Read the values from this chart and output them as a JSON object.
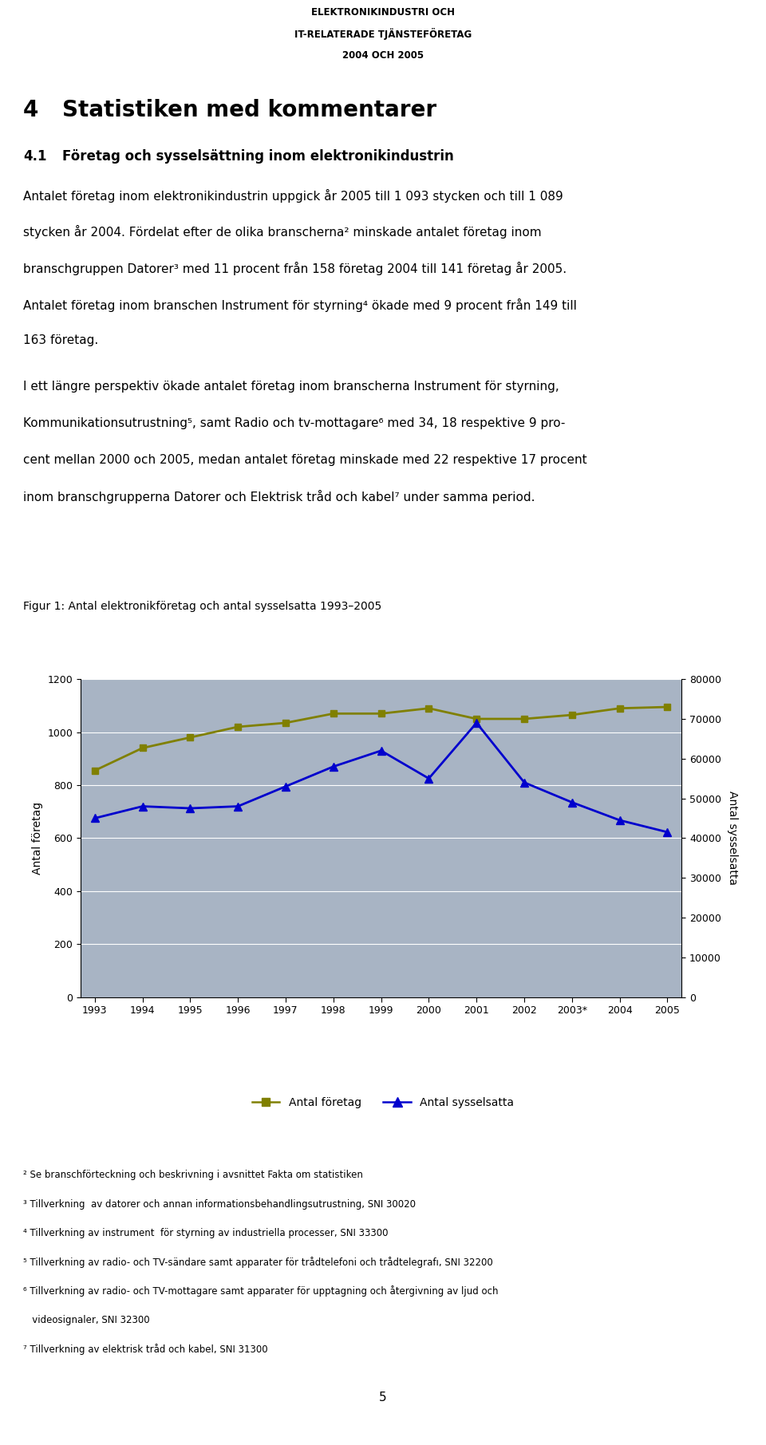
{
  "header_line1": "ELEKTRONIKINDUSTRI OCH",
  "header_line2": "IT-RELATERADE TJÄNSTEFÖRETAG",
  "header_line3": "2004 OCH 2005",
  "section_number": "4",
  "section_title": "Statistiken med kommentarer",
  "subsection_num": "4.1",
  "subsection_title": "Företag och sysselsättning inom elektronikindustrin",
  "fig_caption": "Figur 1: Antal elektronikföretag och antal sysselsatta 1993–2005",
  "years": [
    "1993",
    "1994",
    "1995",
    "1996",
    "1997",
    "1998",
    "1999",
    "2000",
    "2001",
    "2002",
    "2003*",
    "2004",
    "2005"
  ],
  "antal_foretag": [
    855,
    940,
    980,
    1020,
    1035,
    1070,
    1070,
    1090,
    1050,
    1050,
    1065,
    1090,
    1095
  ],
  "antal_sysselsatta": [
    45000,
    48000,
    47500,
    48000,
    53000,
    58000,
    62000,
    55000,
    69000,
    54000,
    49000,
    44500,
    41500
  ],
  "foretag_color": "#808000",
  "sysselsatta_color": "#0000CD",
  "chart_bg_color": "#A8B4C4",
  "left_ylim": [
    0,
    1200
  ],
  "right_ylim": [
    0,
    80000
  ],
  "left_yticks": [
    0,
    200,
    400,
    600,
    800,
    1000,
    1200
  ],
  "right_yticks": [
    0,
    10000,
    20000,
    30000,
    40000,
    50000,
    60000,
    70000,
    80000
  ],
  "ylabel_left": "Antal företag",
  "ylabel_right": "Antal sysselsatta",
  "legend_foretag": "Antal företag",
  "legend_sysselsatta": "Antal sysselsatta",
  "para1_lines": [
    "Antalet företag inom elektronikindustrin uppgick år 2005 till 1 093 stycken och till 1 089",
    "stycken år 2004. Fördelat efter de olika branscherna² minskade antalet företag inom",
    "branschgruppen Datorer³ med 11 procent från 158 företag 2004 till 141 företag år 2005.",
    "Antalet företag inom branschen Instrument för styrning⁴ ökade med 9 procent från 149 till",
    "163 företag."
  ],
  "para2_lines": [
    "I ett längre perspektiv ökade antalet företag inom branscherna Instrument för styrning,",
    "Kommunikationsutrustning⁵, samt Radio och tv-mottagare⁶ med 34, 18 respektive 9 pro-",
    "cent mellan 2000 och 2005, medan antalet företag minskade med 22 respektive 17 procent",
    "inom branschgrupperna Datorer och Elektrisk tråd och kabel⁷ under samma period."
  ],
  "footnotes": [
    "² Se branschförteckning och beskrivning i avsnittet Fakta om statistiken",
    "³ Tillverkning  av datorer och annan informationsbehandlingsutrustning, SNI 30020",
    "⁴ Tillverkning av instrument  för styrning av industriella processer, SNI 33300",
    "⁵ Tillverkning av radio- och TV-sändare samt apparater för trådtelefoni och trådtelegrafı, SNI 32200",
    "⁶ Tillverkning av radio- och TV-mottagare samt apparater för upptagning och återgivning av ljud och",
    "   videosignaler, SNI 32300",
    "⁷ Tillverkning av elektrisk tråd och kabel, SNI 31300"
  ],
  "page_number": "5"
}
